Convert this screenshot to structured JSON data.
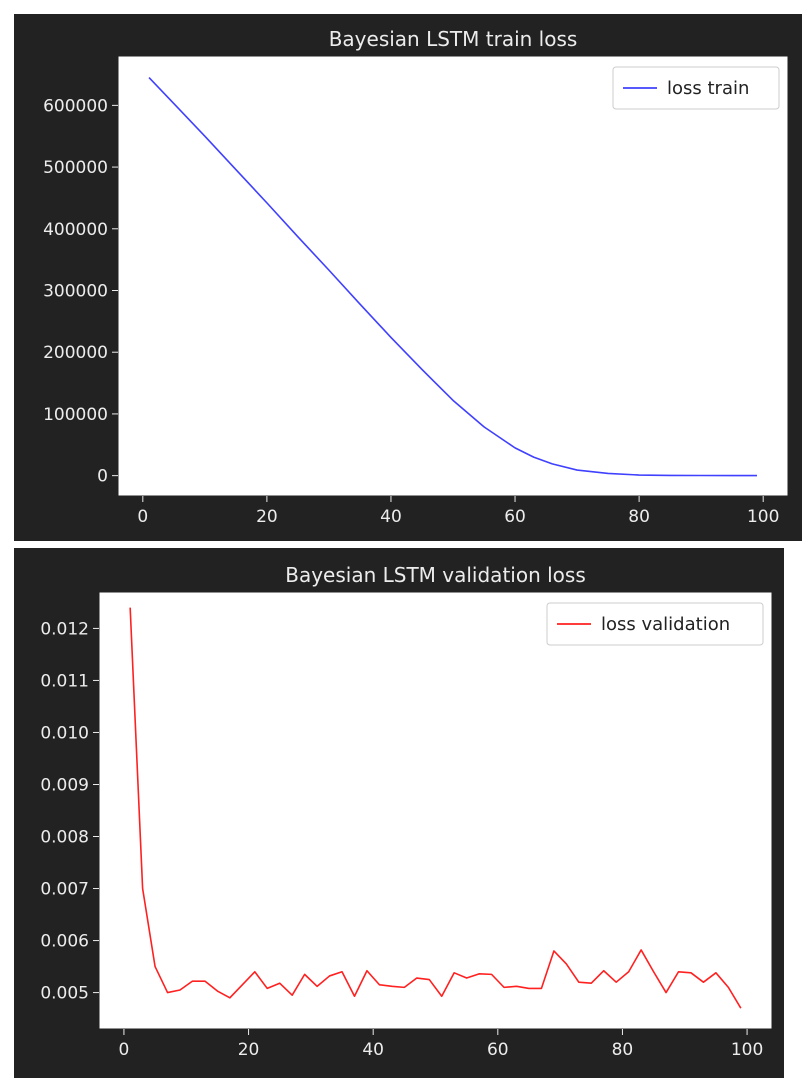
{
  "chart_data": [
    {
      "type": "line",
      "title": "Bayesian LSTM train loss",
      "xlabel": "",
      "ylabel": "",
      "xlim": [
        -4,
        104
      ],
      "ylim": [
        -33000,
        680000
      ],
      "xticks": [
        0,
        20,
        40,
        60,
        80,
        100
      ],
      "xtick_labels": [
        "0",
        "20",
        "40",
        "60",
        "80",
        "100"
      ],
      "yticks": [
        0,
        100000,
        200000,
        300000,
        400000,
        500000,
        600000
      ],
      "ytick_labels": [
        "0",
        "100000",
        "200000",
        "300000",
        "400000",
        "500000",
        "600000"
      ],
      "grid": false,
      "legend_position": "top-right",
      "series": [
        {
          "name": "loss train",
          "color": "#4040ff",
          "x": [
            1,
            5,
            10,
            15,
            20,
            25,
            30,
            35,
            40,
            45,
            50,
            55,
            60,
            63,
            66,
            70,
            75,
            80,
            85,
            90,
            95,
            99
          ],
          "y": [
            645000,
            603000,
            550000,
            496000,
            442000,
            387000,
            333000,
            278000,
            224000,
            172000,
            122000,
            79000,
            45000,
            30000,
            19000,
            9000,
            3500,
            1000,
            400,
            200,
            100,
            100
          ]
        }
      ]
    },
    {
      "type": "line",
      "title": "Bayesian LSTM validation loss",
      "xlabel": "",
      "ylabel": "",
      "xlim": [
        -4,
        104
      ],
      "ylim": [
        0.0043,
        0.0127
      ],
      "xticks": [
        0,
        20,
        40,
        60,
        80,
        100
      ],
      "xtick_labels": [
        "0",
        "20",
        "40",
        "60",
        "80",
        "100"
      ],
      "yticks": [
        0.005,
        0.006,
        0.007,
        0.008,
        0.009,
        0.01,
        0.011,
        0.012
      ],
      "ytick_labels": [
        "0.005",
        "0.006",
        "0.007",
        "0.008",
        "0.009",
        "0.010",
        "0.011",
        "0.012"
      ],
      "grid": false,
      "legend_position": "top-right",
      "series": [
        {
          "name": "loss validation",
          "color": "#ff2020",
          "x": [
            1,
            3,
            5,
            7,
            9,
            11,
            13,
            15,
            17,
            19,
            21,
            23,
            25,
            27,
            29,
            31,
            33,
            35,
            37,
            39,
            41,
            43,
            45,
            47,
            49,
            51,
            53,
            55,
            57,
            59,
            61,
            63,
            65,
            67,
            69,
            71,
            73,
            75,
            77,
            79,
            81,
            83,
            85,
            87,
            89,
            91,
            93,
            95,
            97,
            99
          ],
          "y": [
            0.0124,
            0.007,
            0.0055,
            0.005,
            0.00505,
            0.00522,
            0.00522,
            0.00503,
            0.0049,
            0.00515,
            0.0054,
            0.00508,
            0.00518,
            0.00495,
            0.00535,
            0.00512,
            0.00532,
            0.0054,
            0.00493,
            0.00542,
            0.00515,
            0.00512,
            0.0051,
            0.00528,
            0.00525,
            0.00493,
            0.00538,
            0.00528,
            0.00536,
            0.00535,
            0.0051,
            0.00512,
            0.00508,
            0.00508,
            0.0058,
            0.00555,
            0.0052,
            0.00518,
            0.00542,
            0.0052,
            0.0054,
            0.00582,
            0.0054,
            0.005,
            0.0054,
            0.00538,
            0.0052,
            0.00538,
            0.0051,
            0.0047
          ]
        }
      ]
    }
  ]
}
